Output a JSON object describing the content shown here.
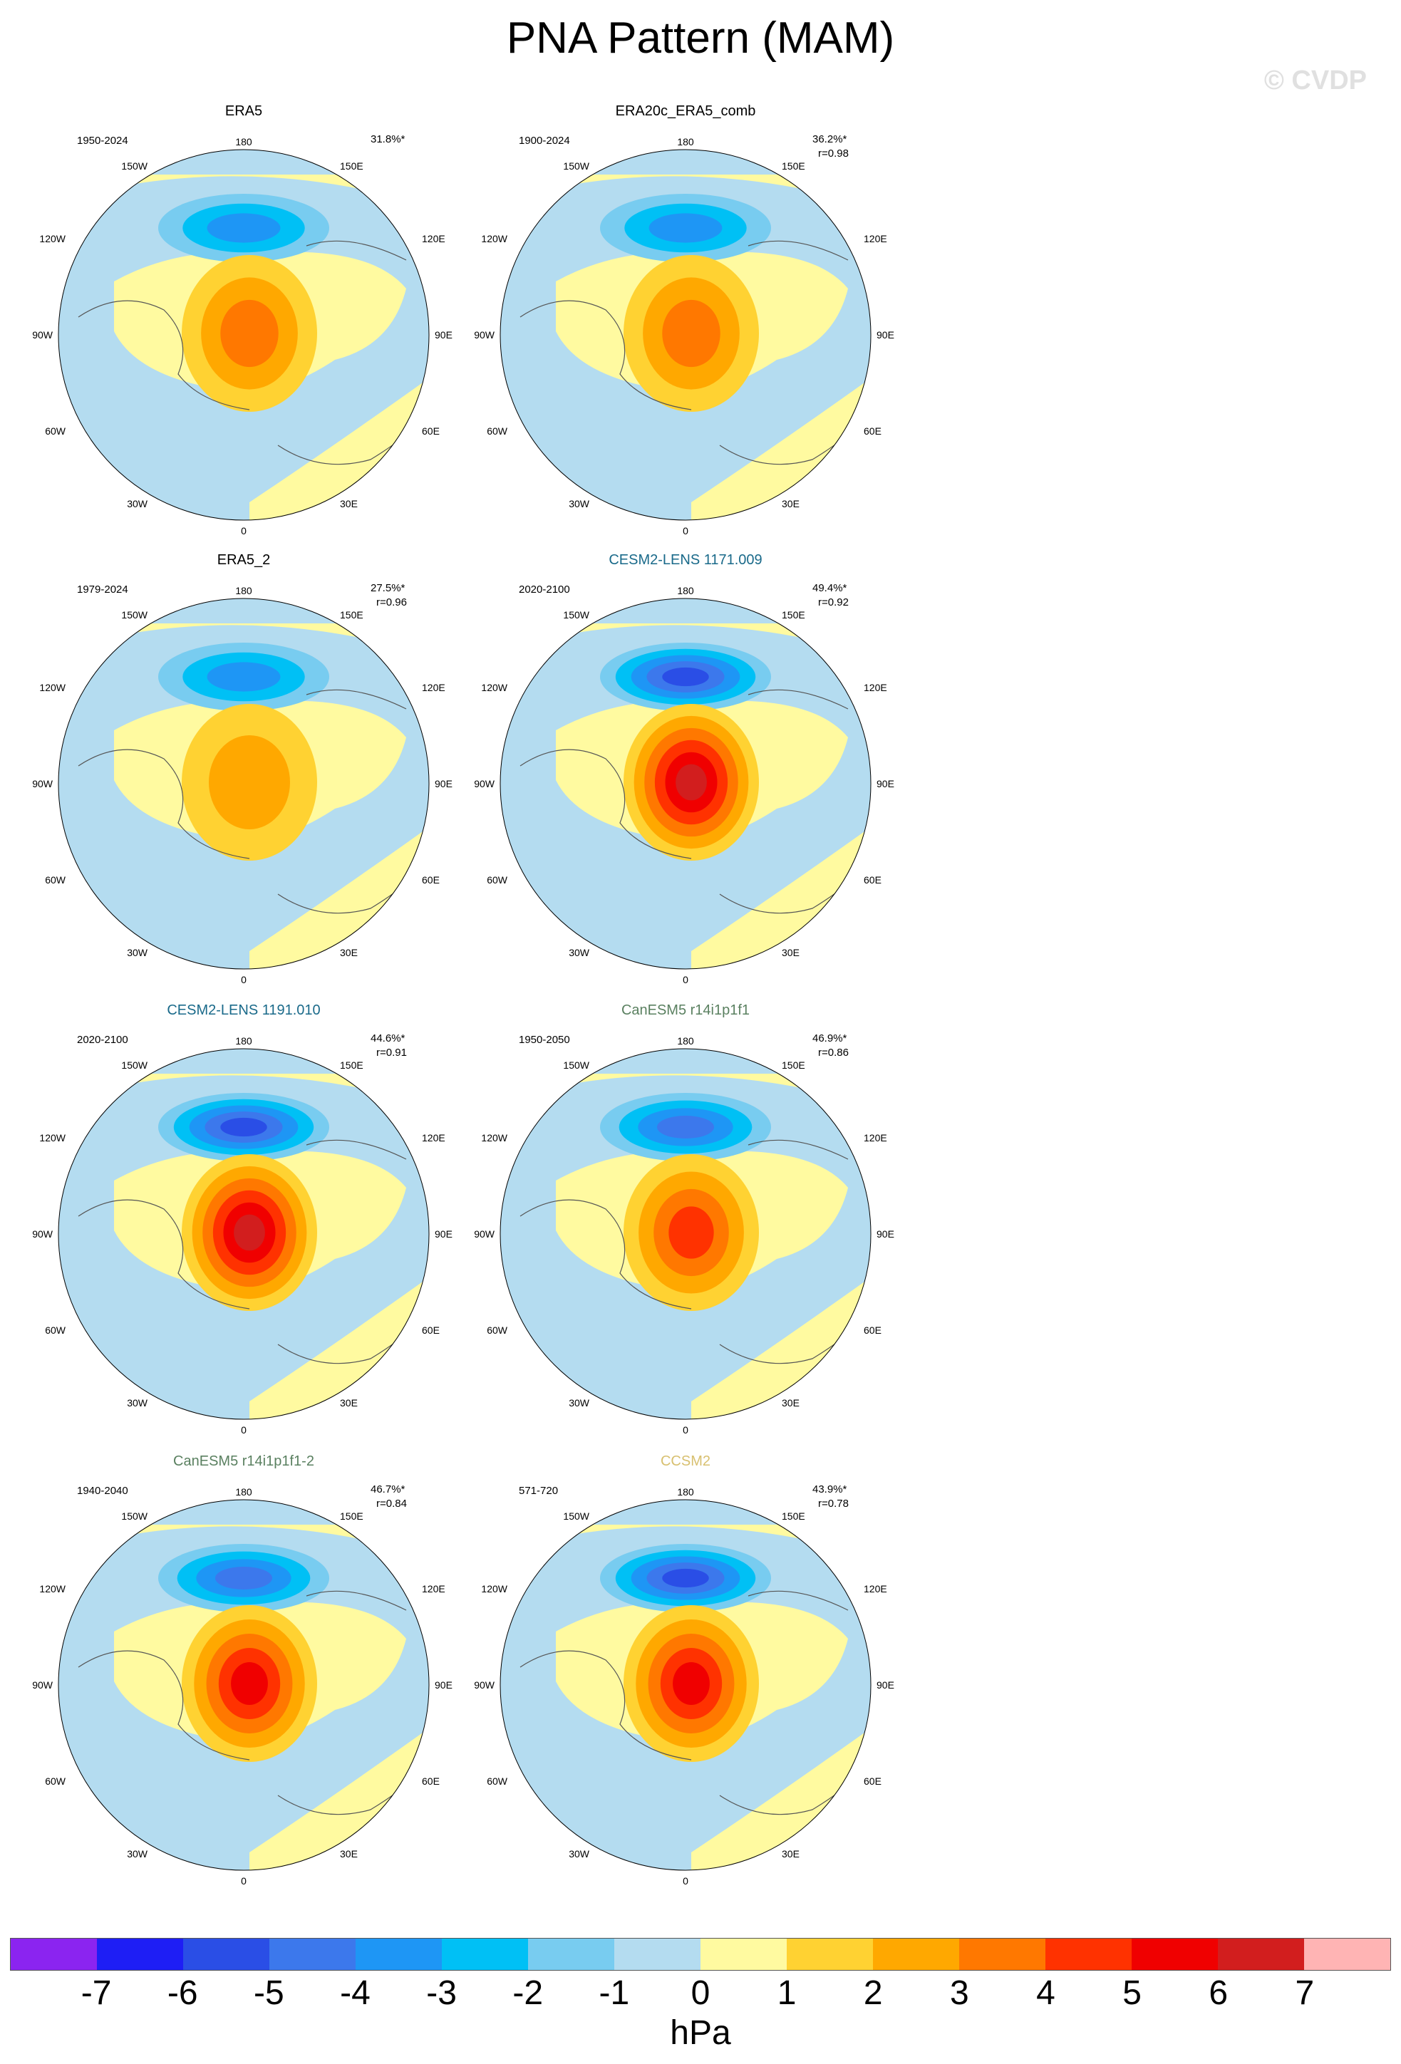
{
  "title": "PNA Pattern (MAM)",
  "credit": "© CVDP",
  "lon_labels": {
    "top": "180",
    "bottom": "0",
    "left": "90W",
    "right": "90E",
    "ul1": "150W",
    "ul2": "120W",
    "ur1": "150E",
    "ur2": "120E",
    "ll1": "60W",
    "ll2": "30W",
    "lr1": "60E",
    "lr2": "30E"
  },
  "panels": [
    {
      "title": "ERA5",
      "title_color": "#000000",
      "period": "1950-2024",
      "pct": "31.8%*",
      "r": "",
      "amp": {
        "neg": 2.8,
        "pos": 2.2
      }
    },
    {
      "title": "ERA20c_ERA5_comb",
      "title_color": "#000000",
      "period": "1900-2024",
      "pct": "36.2%*",
      "r": "r=0.98",
      "amp": {
        "neg": 3.0,
        "pos": 2.3
      }
    },
    {
      "title": "ERA5_2",
      "title_color": "#000000",
      "period": "1979-2024",
      "pct": "27.5%*",
      "r": "r=0.96",
      "amp": {
        "neg": 3.0,
        "pos": 1.6
      }
    },
    {
      "title": "CESM2-LENS 1171.009",
      "title_color": "#1a6a8a",
      "period": "2020-2100",
      "pct": "49.4%*",
      "r": "r=0.92",
      "amp": {
        "neg": 4.4,
        "pos": 5.6
      }
    },
    {
      "title": "CESM2-LENS 1191.010",
      "title_color": "#1a6a8a",
      "period": "2020-2100",
      "pct": "44.6%*",
      "r": "r=0.91",
      "amp": {
        "neg": 4.5,
        "pos": 5.8
      }
    },
    {
      "title": "CanESM5 r14i1p1f1",
      "title_color": "#5a8060",
      "period": "1950-2050",
      "pct": "46.9%*",
      "r": "r=0.86",
      "amp": {
        "neg": 3.6,
        "pos": 3.6
      }
    },
    {
      "title": "CanESM5 r14i1p1f1-2",
      "title_color": "#5a8060",
      "period": "1940-2040",
      "pct": "46.7%*",
      "r": "r=0.84",
      "amp": {
        "neg": 3.7,
        "pos": 4.2
      }
    },
    {
      "title": "CCSM2",
      "title_color": "#d8c070",
      "period": "571-720",
      "pct": "43.9%*",
      "r": "r=0.78",
      "amp": {
        "neg": 4.2,
        "pos": 4.5
      }
    }
  ],
  "colorbar": {
    "colors": [
      "#8b24f0",
      "#1e1ef5",
      "#2a4ee6",
      "#3c78ec",
      "#1e96f5",
      "#00c0f5",
      "#78ccf0",
      "#b4dcf0",
      "#fffaa0",
      "#ffd232",
      "#ffa800",
      "#ff7800",
      "#ff3200",
      "#f00000",
      "#d21e1e",
      "#ffb4b4"
    ],
    "ticks": [
      "-7",
      "-6",
      "-5",
      "-4",
      "-3",
      "-2",
      "-1",
      "0",
      "1",
      "2",
      "3",
      "4",
      "5",
      "6",
      "7"
    ],
    "unit": "hPa"
  }
}
